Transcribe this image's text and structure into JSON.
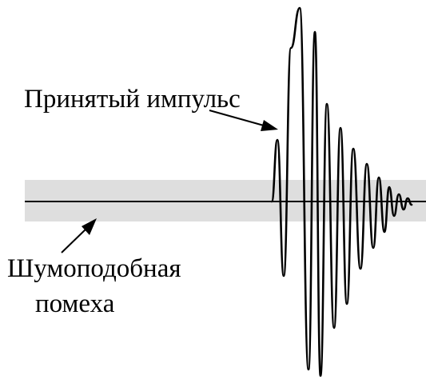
{
  "labels": {
    "received_pulse": "Принятый импульс",
    "noise_line1": "Шумоподобная",
    "noise_line2": "помеха"
  },
  "colors": {
    "noise_band": "#dedede",
    "stroke": "#000000",
    "background": "#ffffff"
  }
}
